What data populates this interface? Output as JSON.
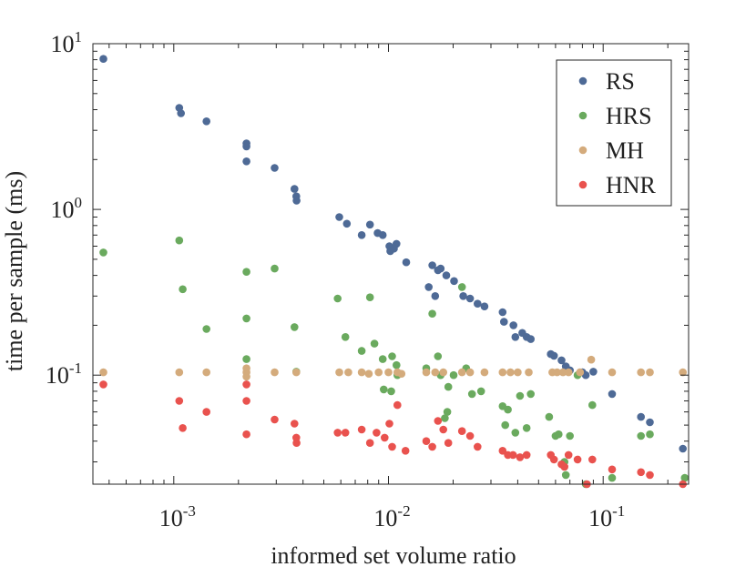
{
  "chart_data": {
    "type": "scatter",
    "title": "",
    "xlabel": "informed set volume ratio",
    "ylabel": "time per sample (ms)",
    "xscale": "log",
    "yscale": "log",
    "xlim": [
      0.00042,
      0.25
    ],
    "ylim": [
      0.022,
      10
    ],
    "grid": false,
    "legend_position": "top-right",
    "xticks": [
      {
        "value": 0.001,
        "base": "10",
        "exp": "-3"
      },
      {
        "value": 0.01,
        "base": "10",
        "exp": "-2"
      },
      {
        "value": 0.1,
        "base": "10",
        "exp": "-1"
      }
    ],
    "yticks": [
      {
        "value": 10,
        "base": "10",
        "exp": "1"
      },
      {
        "value": 1,
        "base": "10",
        "exp": "0"
      },
      {
        "value": 0.1,
        "base": "10",
        "exp": "-1"
      }
    ],
    "series": [
      {
        "name": "RS",
        "color": "#4e6a96",
        "points": [
          [
            0.00047,
            8.1
          ],
          [
            0.00106,
            4.1
          ],
          [
            0.00108,
            3.8
          ],
          [
            0.00142,
            3.4
          ],
          [
            0.00218,
            2.5
          ],
          [
            0.00218,
            2.4
          ],
          [
            0.00218,
            1.95
          ],
          [
            0.00295,
            1.78
          ],
          [
            0.00365,
            1.33
          ],
          [
            0.00372,
            1.2
          ],
          [
            0.00373,
            1.13
          ],
          [
            0.0059,
            0.9
          ],
          [
            0.0064,
            0.82
          ],
          [
            0.0075,
            0.7
          ],
          [
            0.0082,
            0.81
          ],
          [
            0.0089,
            0.72
          ],
          [
            0.0094,
            0.7
          ],
          [
            0.0101,
            0.6
          ],
          [
            0.0102,
            0.56
          ],
          [
            0.0106,
            0.58
          ],
          [
            0.0109,
            0.62
          ],
          [
            0.0121,
            0.48
          ],
          [
            0.0154,
            0.34
          ],
          [
            0.016,
            0.46
          ],
          [
            0.0165,
            0.3
          ],
          [
            0.017,
            0.43
          ],
          [
            0.0175,
            0.44
          ],
          [
            0.0186,
            0.4
          ],
          [
            0.0202,
            0.37
          ],
          [
            0.0223,
            0.3
          ],
          [
            0.024,
            0.29
          ],
          [
            0.026,
            0.27
          ],
          [
            0.028,
            0.26
          ],
          [
            0.034,
            0.24
          ],
          [
            0.0345,
            0.21
          ],
          [
            0.0382,
            0.2
          ],
          [
            0.039,
            0.17
          ],
          [
            0.042,
            0.18
          ],
          [
            0.044,
            0.17
          ],
          [
            0.046,
            0.165
          ],
          [
            0.057,
            0.134
          ],
          [
            0.059,
            0.131
          ],
          [
            0.064,
            0.123
          ],
          [
            0.067,
            0.113
          ],
          [
            0.07,
            0.107
          ],
          [
            0.08,
            0.104
          ],
          [
            0.083,
            0.1
          ],
          [
            0.09,
            0.105
          ],
          [
            0.11,
            0.077
          ],
          [
            0.15,
            0.056
          ],
          [
            0.165,
            0.052
          ],
          [
            0.235,
            0.036
          ]
        ]
      },
      {
        "name": "HRS",
        "color": "#6aaa5e",
        "points": [
          [
            0.00047,
            0.55
          ],
          [
            0.00106,
            0.65
          ],
          [
            0.0011,
            0.33
          ],
          [
            0.00142,
            0.19
          ],
          [
            0.00218,
            0.42
          ],
          [
            0.00218,
            0.22
          ],
          [
            0.00218,
            0.125
          ],
          [
            0.00295,
            0.44
          ],
          [
            0.00365,
            0.195
          ],
          [
            0.00372,
            0.105
          ],
          [
            0.0058,
            0.29
          ],
          [
            0.0063,
            0.17
          ],
          [
            0.0075,
            0.14
          ],
          [
            0.0082,
            0.295
          ],
          [
            0.0086,
            0.155
          ],
          [
            0.0094,
            0.125
          ],
          [
            0.0095,
            0.082
          ],
          [
            0.0103,
            0.08
          ],
          [
            0.0104,
            0.13
          ],
          [
            0.0109,
            0.115
          ],
          [
            0.011,
            0.1
          ],
          [
            0.015,
            0.11
          ],
          [
            0.016,
            0.235
          ],
          [
            0.017,
            0.13
          ],
          [
            0.0175,
            0.1
          ],
          [
            0.0183,
            0.055
          ],
          [
            0.0188,
            0.06
          ],
          [
            0.019,
            0.085
          ],
          [
            0.0201,
            0.1
          ],
          [
            0.022,
            0.34
          ],
          [
            0.023,
            0.11
          ],
          [
            0.0245,
            0.077
          ],
          [
            0.027,
            0.08
          ],
          [
            0.034,
            0.065
          ],
          [
            0.035,
            0.05
          ],
          [
            0.036,
            0.062
          ],
          [
            0.039,
            0.045
          ],
          [
            0.041,
            0.075
          ],
          [
            0.044,
            0.048
          ],
          [
            0.046,
            0.077
          ],
          [
            0.056,
            0.056
          ],
          [
            0.06,
            0.043
          ],
          [
            0.062,
            0.044
          ],
          [
            0.066,
            0.03
          ],
          [
            0.067,
            0.025
          ],
          [
            0.07,
            0.043
          ],
          [
            0.076,
            0.1
          ],
          [
            0.083,
            0.022
          ],
          [
            0.089,
            0.066
          ],
          [
            0.11,
            0.024
          ],
          [
            0.15,
            0.043
          ],
          [
            0.165,
            0.044
          ],
          [
            0.24,
            0.024
          ]
        ]
      },
      {
        "name": "MH",
        "color": "#d4ab7c",
        "points": [
          [
            0.00047,
            0.104
          ],
          [
            0.00106,
            0.104
          ],
          [
            0.00142,
            0.104
          ],
          [
            0.00218,
            0.104
          ],
          [
            0.00218,
            0.11
          ],
          [
            0.00218,
            0.098
          ],
          [
            0.00295,
            0.104
          ],
          [
            0.00372,
            0.104
          ],
          [
            0.0059,
            0.104
          ],
          [
            0.0065,
            0.104
          ],
          [
            0.0075,
            0.104
          ],
          [
            0.0081,
            0.102
          ],
          [
            0.009,
            0.104
          ],
          [
            0.01,
            0.104
          ],
          [
            0.011,
            0.104
          ],
          [
            0.0115,
            0.102
          ],
          [
            0.015,
            0.104
          ],
          [
            0.0165,
            0.104
          ],
          [
            0.018,
            0.104
          ],
          [
            0.022,
            0.104
          ],
          [
            0.024,
            0.104
          ],
          [
            0.028,
            0.104
          ],
          [
            0.034,
            0.104
          ],
          [
            0.037,
            0.104
          ],
          [
            0.04,
            0.104
          ],
          [
            0.045,
            0.104
          ],
          [
            0.058,
            0.104
          ],
          [
            0.061,
            0.104
          ],
          [
            0.065,
            0.104
          ],
          [
            0.069,
            0.104
          ],
          [
            0.078,
            0.104
          ],
          [
            0.088,
            0.124
          ],
          [
            0.11,
            0.104
          ],
          [
            0.15,
            0.104
          ],
          [
            0.165,
            0.104
          ],
          [
            0.235,
            0.104
          ]
        ]
      },
      {
        "name": "HNR",
        "color": "#e9524e",
        "points": [
          [
            0.00047,
            0.088
          ],
          [
            0.00106,
            0.07
          ],
          [
            0.0011,
            0.048
          ],
          [
            0.00142,
            0.06
          ],
          [
            0.00218,
            0.088
          ],
          [
            0.00218,
            0.07
          ],
          [
            0.00218,
            0.044
          ],
          [
            0.00295,
            0.054
          ],
          [
            0.00365,
            0.051
          ],
          [
            0.00372,
            0.042
          ],
          [
            0.00373,
            0.039
          ],
          [
            0.0058,
            0.045
          ],
          [
            0.0063,
            0.045
          ],
          [
            0.0075,
            0.047
          ],
          [
            0.0082,
            0.039
          ],
          [
            0.0088,
            0.045
          ],
          [
            0.0096,
            0.042
          ],
          [
            0.0101,
            0.051
          ],
          [
            0.0104,
            0.037
          ],
          [
            0.011,
            0.066
          ],
          [
            0.012,
            0.035
          ],
          [
            0.015,
            0.04
          ],
          [
            0.016,
            0.037
          ],
          [
            0.017,
            0.053
          ],
          [
            0.018,
            0.047
          ],
          [
            0.019,
            0.039
          ],
          [
            0.022,
            0.046
          ],
          [
            0.024,
            0.043
          ],
          [
            0.026,
            0.037
          ],
          [
            0.034,
            0.035
          ],
          [
            0.036,
            0.033
          ],
          [
            0.038,
            0.033
          ],
          [
            0.041,
            0.032
          ],
          [
            0.044,
            0.033
          ],
          [
            0.057,
            0.033
          ],
          [
            0.059,
            0.031
          ],
          [
            0.064,
            0.029
          ],
          [
            0.066,
            0.028
          ],
          [
            0.069,
            0.033
          ],
          [
            0.076,
            0.031
          ],
          [
            0.084,
            0.022
          ],
          [
            0.089,
            0.031
          ],
          [
            0.11,
            0.027
          ],
          [
            0.15,
            0.026
          ],
          [
            0.165,
            0.025
          ],
          [
            0.235,
            0.022
          ]
        ]
      }
    ]
  }
}
